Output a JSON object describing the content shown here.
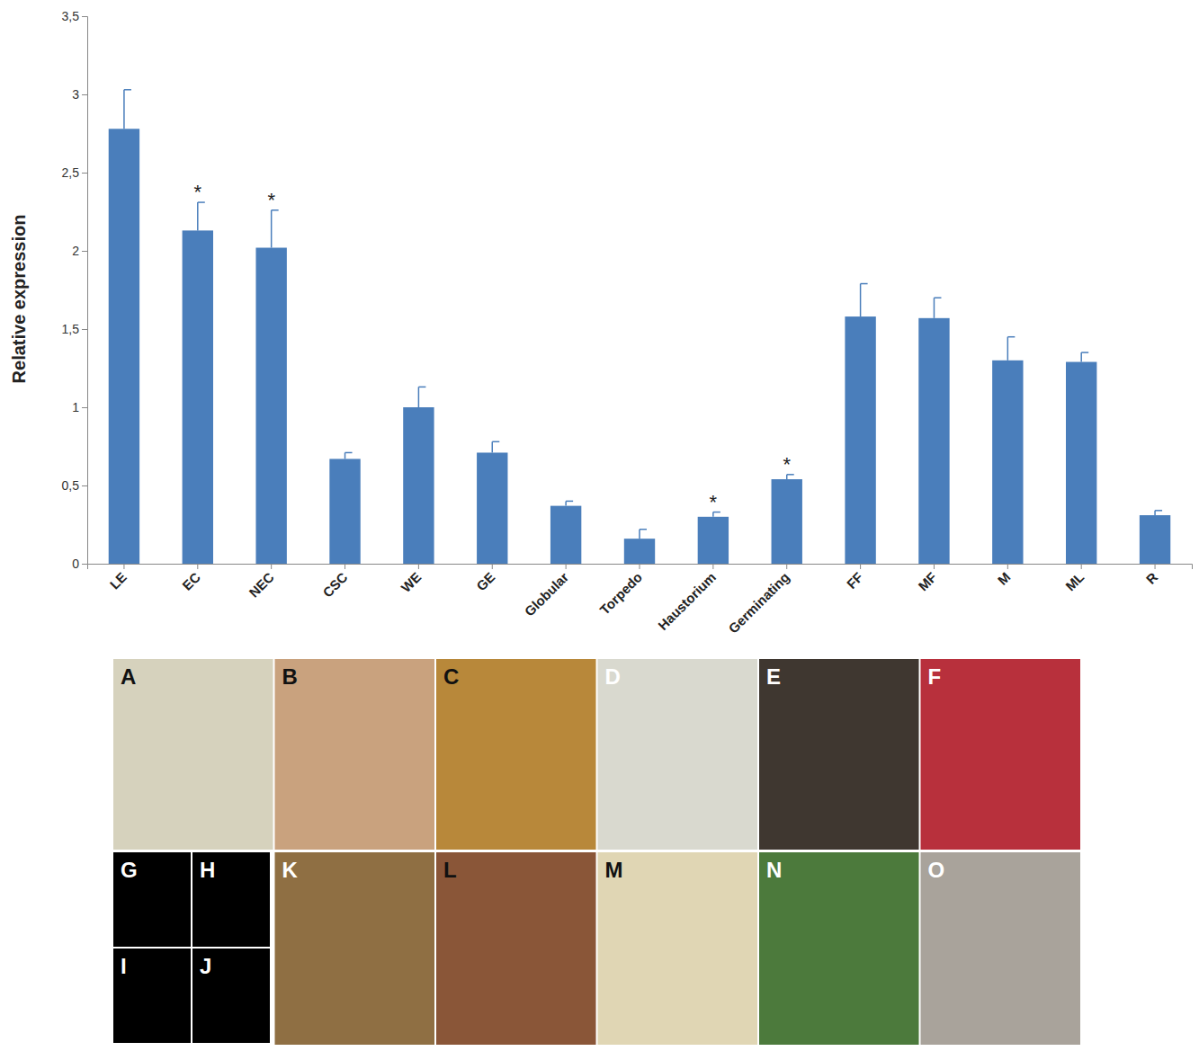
{
  "chart_data": {
    "type": "bar",
    "y_label": "Relative expression",
    "categories": [
      "LE",
      "EC",
      "NEC",
      "CSC",
      "WE",
      "GE",
      "Globular",
      "Torpedo",
      "Haustorium",
      "Germinating",
      "FF",
      "MF",
      "M",
      "ML",
      "R"
    ],
    "values": [
      2.78,
      2.13,
      2.02,
      0.67,
      1.0,
      0.71,
      0.37,
      0.16,
      0.3,
      0.54,
      1.58,
      1.57,
      1.3,
      1.29,
      0.31
    ],
    "errors": [
      0.25,
      0.18,
      0.24,
      0.04,
      0.13,
      0.07,
      0.03,
      0.06,
      0.03,
      0.03,
      0.21,
      0.13,
      0.15,
      0.06,
      0.03
    ],
    "color": "#4a7ebb",
    "ylim": [
      0,
      3.5
    ],
    "yticks": [
      0,
      {
        "value": 0.5,
        "label": "0,5"
      },
      1,
      {
        "value": 1.5,
        "label": "1,5"
      },
      2,
      {
        "value": 2.5,
        "label": "2,5"
      },
      3,
      {
        "value": 3.5,
        "label": "3,5"
      }
    ],
    "grid": false,
    "annotations": [
      {
        "category": "EC",
        "text": "*"
      },
      {
        "category": "NEC",
        "text": "*"
      },
      {
        "category": "Haustorium",
        "text": "*"
      },
      {
        "category": "Germinating",
        "text": "*"
      }
    ]
  },
  "figure_panels": {
    "labels": [
      "A",
      "B",
      "C",
      "D",
      "E",
      "F",
      "G",
      "H",
      "I",
      "J",
      "K",
      "L",
      "M",
      "N",
      "O"
    ]
  }
}
